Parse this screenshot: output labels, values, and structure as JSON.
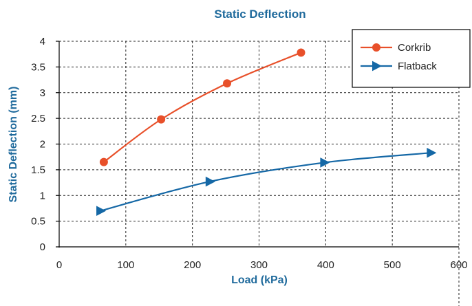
{
  "chart_data": {
    "type": "line",
    "title": "Static Deflection",
    "xlabel": "Load (kPa)",
    "ylabel": "Static Deflection (mm)",
    "xlim": [
      0,
      600
    ],
    "ylim": [
      0,
      4
    ],
    "xticks": [
      0,
      100,
      200,
      300,
      400,
      500,
      600
    ],
    "yticks": [
      0,
      0.5,
      1,
      1.5,
      2,
      2.5,
      3,
      3.5,
      4
    ],
    "ytick_labels": [
      "0",
      "0.5",
      "1",
      "1.5",
      "2",
      "2.5",
      "3",
      "3.5",
      "4"
    ],
    "grid": true,
    "legend_position": "top-right",
    "series": [
      {
        "name": "Corkrib",
        "color": "#e8502a",
        "marker": "circle",
        "x": [
          67,
          153,
          252,
          363
        ],
        "y": [
          1.65,
          2.48,
          3.18,
          3.78
        ]
      },
      {
        "name": "Flatback",
        "color": "#1568a6",
        "marker": "triangle-right",
        "x": [
          62,
          226,
          398,
          558
        ],
        "y": [
          0.7,
          1.27,
          1.64,
          1.83
        ]
      }
    ]
  }
}
